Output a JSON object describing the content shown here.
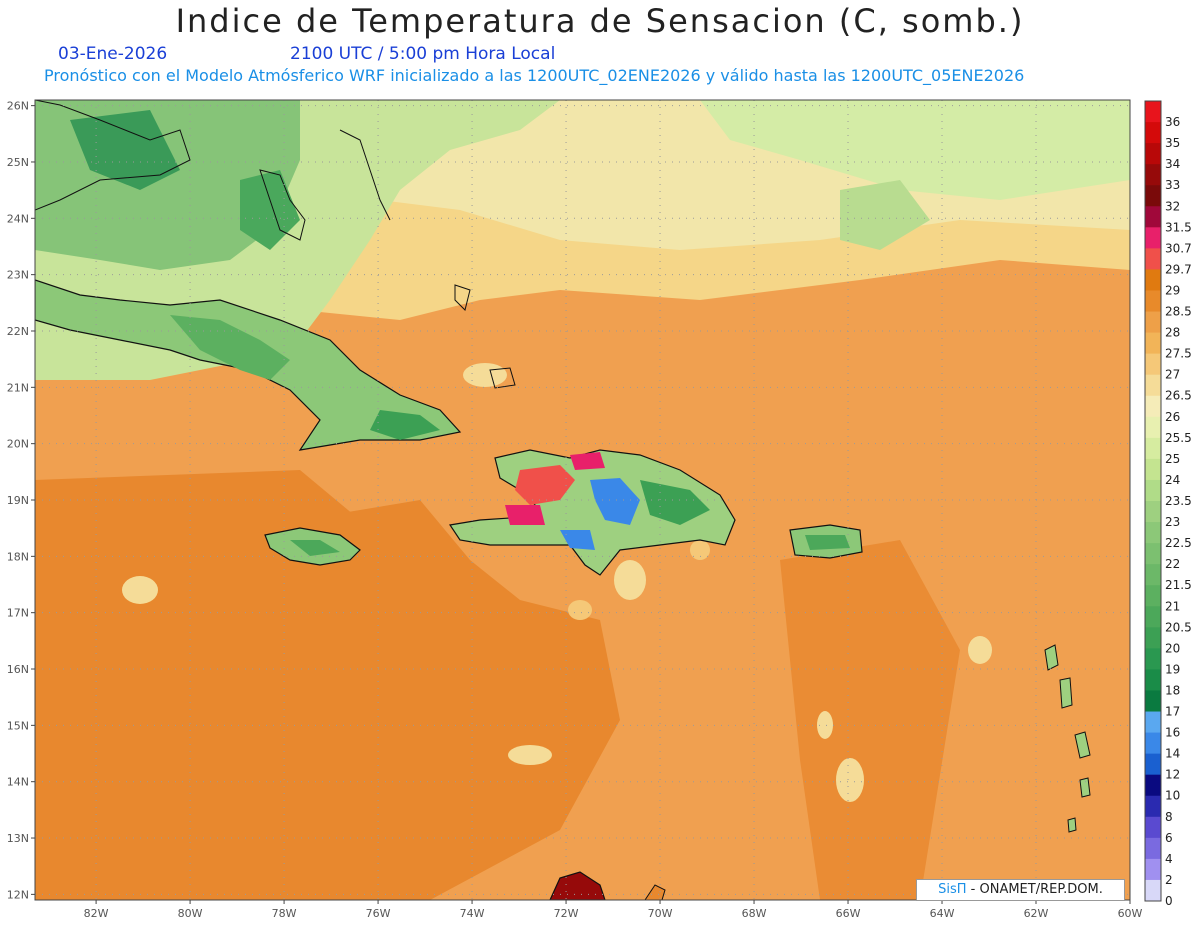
{
  "title": "Indice de Temperatura de Sensacion (C, somb.)",
  "date": "03-Ene-2026",
  "time": "2100 UTC / 5:00 pm Hora Local",
  "subtitle": "Pronóstico con el Modelo Atmósferico WRF inicializado a las 1200UTC_02ENE2026 y válido hasta las  1200UTC_05ENE2026",
  "credit": {
    "brand": "SisΠ",
    "rest": " - ONAMET/REP.DOM."
  },
  "map": {
    "lon_range": [
      -83.3,
      -60
    ],
    "lat_range": [
      11.9,
      26.1
    ],
    "lon_ticks": [
      "82W",
      "80W",
      "78W",
      "76W",
      "74W",
      "72W",
      "70W",
      "68W",
      "66W",
      "64W",
      "62W",
      "60W"
    ],
    "lat_ticks": [
      "26N",
      "25N",
      "24N",
      "23N",
      "22N",
      "21N",
      "20N",
      "19N",
      "18N",
      "17N",
      "16N",
      "15N",
      "14N",
      "13N",
      "12N"
    ],
    "gridlines": "dotted",
    "background_color": "#f0a050"
  },
  "colorbar": {
    "levels": [
      {
        "label": "36",
        "color": "#e8141c"
      },
      {
        "label": "35",
        "color": "#d40a0a"
      },
      {
        "label": "34",
        "color": "#b80808"
      },
      {
        "label": "33",
        "color": "#960a0a"
      },
      {
        "label": "32",
        "color": "#7a0a0a"
      },
      {
        "label": "31.5",
        "color": "#a0083a"
      },
      {
        "label": "30.7",
        "color": "#e8206a"
      },
      {
        "label": "29.7",
        "color": "#f0504a"
      },
      {
        "label": "29",
        "color": "#e07a10"
      },
      {
        "label": "28.5",
        "color": "#e88a2a"
      },
      {
        "label": "28",
        "color": "#eea048"
      },
      {
        "label": "27.5",
        "color": "#f2b458"
      },
      {
        "label": "27",
        "color": "#f5c878"
      },
      {
        "label": "26.5",
        "color": "#f5dc98"
      },
      {
        "label": "26",
        "color": "#f5ecb8"
      },
      {
        "label": "25.5",
        "color": "#e8f0b0"
      },
      {
        "label": "25",
        "color": "#d6eca0"
      },
      {
        "label": "24",
        "color": "#c4e490"
      },
      {
        "label": "23.5",
        "color": "#b0dc88"
      },
      {
        "label": "23",
        "color": "#9ed080"
      },
      {
        "label": "22.5",
        "color": "#8cc878"
      },
      {
        "label": "22",
        "color": "#7cc070"
      },
      {
        "label": "21.5",
        "color": "#6cb868"
      },
      {
        "label": "21",
        "color": "#5cb060"
      },
      {
        "label": "20.5",
        "color": "#4ca85a"
      },
      {
        "label": "20",
        "color": "#3ca054"
      },
      {
        "label": "19",
        "color": "#2a9850"
      },
      {
        "label": "18",
        "color": "#1a8c48"
      },
      {
        "label": "17",
        "color": "#0a7a40"
      },
      {
        "label": "16",
        "color": "#5aa8f0"
      },
      {
        "label": "14",
        "color": "#3a88e8"
      },
      {
        "label": "12",
        "color": "#1a60d0"
      },
      {
        "label": "10",
        "color": "#0a0a80"
      },
      {
        "label": "8",
        "color": "#2a2ab0"
      },
      {
        "label": "6",
        "color": "#5a4ad0"
      },
      {
        "label": "4",
        "color": "#7a6ae0"
      },
      {
        "label": "2",
        "color": "#a090f0"
      },
      {
        "label": "0",
        "color": "#d8d8f8"
      }
    ]
  }
}
